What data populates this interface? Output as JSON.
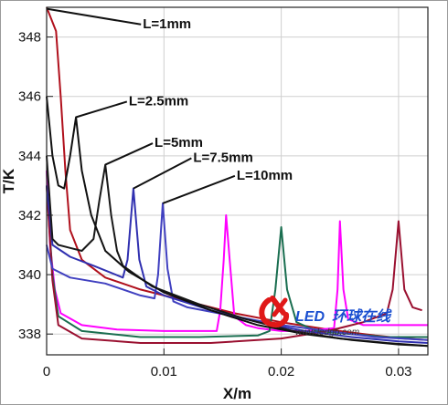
{
  "chart_data": {
    "type": "line",
    "title": "",
    "xlabel": "X/m",
    "ylabel": "T/K",
    "xlim": [
      0,
      0.0325
    ],
    "ylim": [
      337.3,
      349
    ],
    "xticks": [
      0,
      0.01,
      0.02,
      0.03
    ],
    "xtick_labels": [
      "0",
      "0.01",
      "0.02",
      "0.03"
    ],
    "yticks": [
      338,
      340,
      342,
      344,
      346,
      348
    ],
    "ytick_labels": [
      "338",
      "340",
      "342",
      "344",
      "346",
      "348"
    ],
    "grid": true,
    "legend": "none",
    "series": [
      {
        "color": "#b0101c",
        "points": [
          [
            0,
            349
          ],
          [
            0.0008,
            348.2
          ],
          [
            0.0012,
            346
          ],
          [
            0.0016,
            343.5
          ],
          [
            0.002,
            341.5
          ],
          [
            0.003,
            340.5
          ],
          [
            0.005,
            339.9
          ],
          [
            0.008,
            339.5
          ],
          [
            0.012,
            339.1
          ],
          [
            0.016,
            338.7
          ],
          [
            0.02,
            338.4
          ],
          [
            0.024,
            338.15
          ],
          [
            0.028,
            337.95
          ],
          [
            0.0305,
            337.85
          ],
          [
            0.0325,
            337.8
          ]
        ]
      },
      {
        "color": "#ff00ff",
        "points": [
          [
            0,
            343.5
          ],
          [
            0.0003,
            341
          ],
          [
            0.0007,
            339.5
          ],
          [
            0.0012,
            338.7
          ],
          [
            0.003,
            338.3
          ],
          [
            0.006,
            338.15
          ],
          [
            0.01,
            338.1
          ],
          [
            0.0145,
            338.1
          ],
          [
            0.0148,
            338.8
          ],
          [
            0.0151,
            340.5
          ],
          [
            0.0153,
            342
          ],
          [
            0.0156,
            340.5
          ],
          [
            0.016,
            338.6
          ],
          [
            0.017,
            338.3
          ],
          [
            0.018,
            338.2
          ],
          [
            0.02,
            338.1
          ],
          [
            0.022,
            338.1
          ],
          [
            0.0245,
            338.2
          ],
          [
            0.0248,
            339.5
          ],
          [
            0.025,
            341.8
          ],
          [
            0.0253,
            339.5
          ],
          [
            0.0257,
            338.5
          ],
          [
            0.027,
            338.3
          ],
          [
            0.03,
            338.3
          ],
          [
            0.0325,
            338.3
          ]
        ]
      },
      {
        "color": "#1a6e50",
        "points": [
          [
            0,
            343
          ],
          [
            0.0005,
            340
          ],
          [
            0.001,
            338.6
          ],
          [
            0.003,
            338.1
          ],
          [
            0.008,
            337.9
          ],
          [
            0.013,
            337.9
          ],
          [
            0.018,
            337.95
          ],
          [
            0.019,
            338.1
          ],
          [
            0.0195,
            339.5
          ],
          [
            0.02,
            341.6
          ],
          [
            0.0205,
            339.5
          ],
          [
            0.0213,
            338.4
          ],
          [
            0.023,
            338.1
          ],
          [
            0.026,
            338.0
          ],
          [
            0.029,
            337.9
          ],
          [
            0.0325,
            337.9
          ]
        ]
      },
      {
        "color": "#9a1030",
        "points": [
          [
            0,
            343
          ],
          [
            0.0005,
            339.8
          ],
          [
            0.001,
            338.3
          ],
          [
            0.003,
            337.85
          ],
          [
            0.008,
            337.7
          ],
          [
            0.014,
            337.7
          ],
          [
            0.02,
            337.85
          ],
          [
            0.024,
            338.1
          ],
          [
            0.027,
            338.4
          ],
          [
            0.029,
            338.7
          ],
          [
            0.0295,
            339.5
          ],
          [
            0.03,
            341.8
          ],
          [
            0.0305,
            339.5
          ],
          [
            0.0312,
            338.9
          ],
          [
            0.032,
            338.8
          ]
        ]
      },
      {
        "color": "#4040c0",
        "points": [
          [
            0,
            341
          ],
          [
            0.0005,
            340.2
          ],
          [
            0.002,
            339.9
          ],
          [
            0.005,
            339.7
          ],
          [
            0.008,
            339.3
          ],
          [
            0.0092,
            339.2
          ],
          [
            0.0095,
            340
          ],
          [
            0.0099,
            342.4
          ],
          [
            0.0103,
            340.2
          ],
          [
            0.0108,
            339.1
          ],
          [
            0.012,
            338.9
          ],
          [
            0.016,
            338.6
          ],
          [
            0.02,
            338.3
          ],
          [
            0.024,
            338.1
          ],
          [
            0.028,
            337.9
          ],
          [
            0.0325,
            337.8
          ]
        ]
      },
      {
        "color": "#3030b0",
        "points": [
          [
            0,
            343
          ],
          [
            0.0005,
            341
          ],
          [
            0.002,
            340.6
          ],
          [
            0.004,
            340.3
          ],
          [
            0.0065,
            339.9
          ],
          [
            0.0069,
            340.5
          ],
          [
            0.0074,
            342.9
          ],
          [
            0.0079,
            340.5
          ],
          [
            0.0085,
            339.6
          ],
          [
            0.01,
            339.3
          ],
          [
            0.014,
            338.8
          ],
          [
            0.018,
            338.4
          ],
          [
            0.022,
            338.1
          ],
          [
            0.026,
            337.9
          ],
          [
            0.03,
            337.75
          ],
          [
            0.0325,
            337.7
          ]
        ]
      },
      {
        "color": "#181818",
        "points": [
          [
            0,
            344
          ],
          [
            0.0005,
            341.2
          ],
          [
            0.001,
            341.0
          ],
          [
            0.002,
            340.9
          ],
          [
            0.003,
            340.8
          ],
          [
            0.004,
            341.2
          ],
          [
            0.0045,
            342.5
          ],
          [
            0.005,
            343.7
          ],
          [
            0.0055,
            342
          ],
          [
            0.006,
            340.8
          ],
          [
            0.0065,
            340.3
          ],
          [
            0.009,
            339.6
          ],
          [
            0.013,
            339.0
          ],
          [
            0.017,
            338.5
          ],
          [
            0.021,
            338.1
          ],
          [
            0.025,
            337.85
          ],
          [
            0.029,
            337.7
          ],
          [
            0.0325,
            337.6
          ]
        ]
      },
      {
        "color": "#101010",
        "points": [
          [
            0,
            346
          ],
          [
            0.0005,
            344
          ],
          [
            0.001,
            343
          ],
          [
            0.0015,
            342.9
          ],
          [
            0.002,
            344
          ],
          [
            0.0025,
            345.3
          ],
          [
            0.003,
            343.5
          ],
          [
            0.0038,
            342
          ],
          [
            0.005,
            340.8
          ],
          [
            0.007,
            340.1
          ],
          [
            0.01,
            339.4
          ],
          [
            0.014,
            338.8
          ],
          [
            0.018,
            338.3
          ],
          [
            0.022,
            338.0
          ],
          [
            0.026,
            337.8
          ],
          [
            0.03,
            337.65
          ],
          [
            0.0325,
            337.6
          ]
        ]
      }
    ],
    "annotations": [
      {
        "text": "L=1mm",
        "target": [
          0,
          348.95
        ],
        "label_at": [
          0.0082,
          348.3
        ]
      },
      {
        "text": "L=2.5mm",
        "target": [
          0.0025,
          345.3
        ],
        "label_at": [
          0.007,
          345.7
        ]
      },
      {
        "text": "L=5mm",
        "target": [
          0.005,
          343.7
        ],
        "label_at": [
          0.0092,
          344.3
        ]
      },
      {
        "text": "L=7.5mm",
        "target": [
          0.0074,
          342.9
        ],
        "label_at": [
          0.0125,
          343.8
        ]
      },
      {
        "text": "L=10mm",
        "target": [
          0.0099,
          342.4
        ],
        "label_at": [
          0.0162,
          343.2
        ]
      }
    ]
  },
  "watermark": {
    "brand": "LED",
    "brand_cn": "环球在线",
    "url": "www.ledgb.com",
    "brand_color": "#1a4fd0",
    "logo_color": "#e01818"
  }
}
